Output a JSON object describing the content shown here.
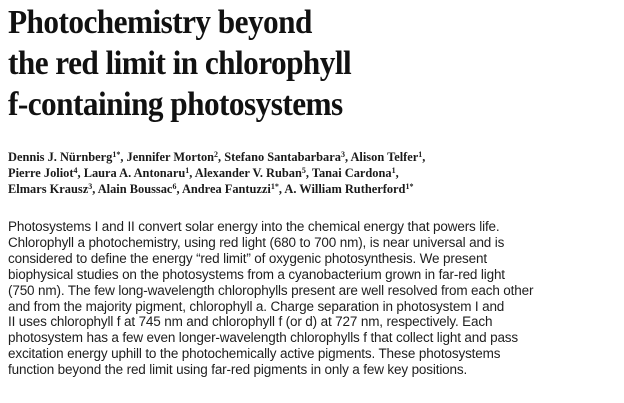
{
  "article": {
    "title_lines": [
      "Photochemistry beyond",
      "the red limit in chlorophyll",
      "f-containing photosystems"
    ],
    "authors": [
      {
        "name": "Dennis J. Nürnberg",
        "aff": "1*",
        "sep": ", "
      },
      {
        "name": "Jennifer Morton",
        "aff": "2",
        "sep": ", "
      },
      {
        "name": "Stefano Santabarbara",
        "aff": "3",
        "sep": ", "
      },
      {
        "name": "Alison Telfer",
        "aff": "1",
        "sep": ","
      },
      {
        "name": "Pierre Joliot",
        "aff": "4",
        "sep": ", "
      },
      {
        "name": "Laura A. Antonaru",
        "aff": "1",
        "sep": ", "
      },
      {
        "name": "Alexander V. Ruban",
        "aff": "5",
        "sep": ", "
      },
      {
        "name": "Tanai Cardona",
        "aff": "1",
        "sep": ","
      },
      {
        "name": "Elmars Krausz",
        "aff": "3",
        "sep": ", "
      },
      {
        "name": "Alain Boussac",
        "aff": "6",
        "sep": ", "
      },
      {
        "name": "Andrea Fantuzzi",
        "aff": "1*",
        "sep": ", "
      },
      {
        "name": "A. William Rutherford",
        "aff": "1*",
        "sep": ""
      }
    ],
    "abstract_lines": [
      "Photosystems I and II convert solar energy into the chemical energy that powers life.",
      "Chlorophyll a photochemistry, using red light (680 to 700 nm), is near universal and is",
      "considered to define the energy “red limit” of oxygenic photosynthesis. We present",
      "biophysical studies on the photosystems from a cyanobacterium grown in far-red light",
      "(750 nm). The few long-wavelength chlorophylls present are well resolved from each other",
      "and from the majority pigment, chlorophyll a. Charge separation in photosystem I and",
      "II uses chlorophyll f at 745 nm and chlorophyll f (or d) at 727 nm, respectively. Each",
      "photosystem has a few even longer-wavelength chlorophylls f that collect light and pass",
      "excitation energy uphill to the photochemically active pigments. These photosystems",
      "function beyond the red limit using far-red pigments in only a few key positions."
    ]
  }
}
